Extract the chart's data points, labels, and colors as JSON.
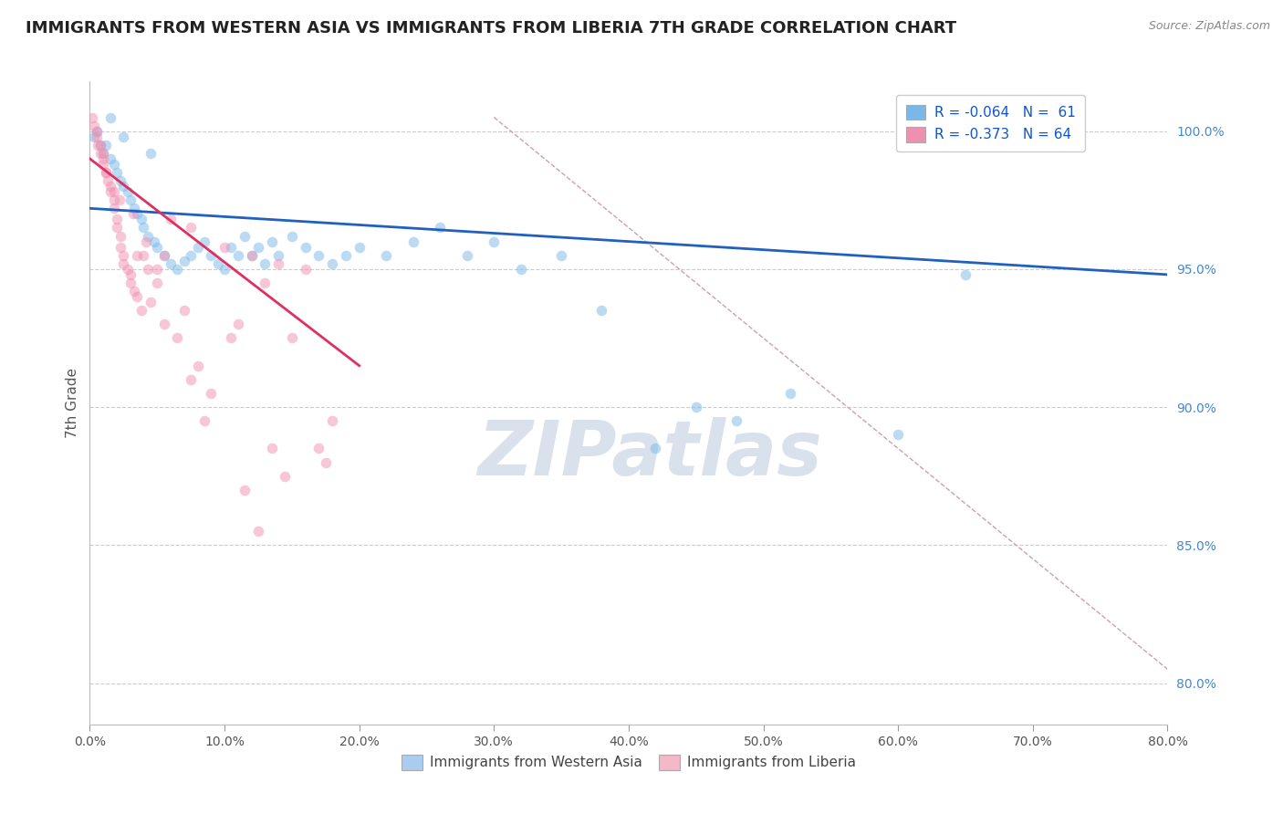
{
  "title": "IMMIGRANTS FROM WESTERN ASIA VS IMMIGRANTS FROM LIBERIA 7TH GRADE CORRELATION CHART",
  "source_text": "Source: ZipAtlas.com",
  "ylabel_left": "7th Grade",
  "x_tick_labels": [
    "0.0%",
    "",
    "",
    "",
    "",
    "",
    "",
    "",
    "",
    "",
    "10.0%",
    "",
    "",
    "",
    "",
    "",
    "",
    "",
    "",
    "",
    "20.0%",
    "",
    "",
    "",
    "",
    "",
    "",
    "",
    "",
    "",
    "30.0%",
    "",
    "",
    "",
    "",
    "",
    "",
    "",
    "",
    "",
    "40.0%",
    "",
    "",
    "",
    "",
    "",
    "",
    "",
    "",
    "",
    "50.0%",
    "",
    "",
    "",
    "",
    "",
    "",
    "",
    "",
    "",
    "60.0%",
    "",
    "",
    "",
    "",
    "",
    "",
    "",
    "",
    "",
    "70.0%",
    "",
    "",
    "",
    "",
    "",
    "",
    "",
    "",
    "",
    "80.0%"
  ],
  "y_right_tick_labels": [
    "80.0%",
    "85.0%",
    "90.0%",
    "95.0%",
    "100.0%"
  ],
  "x_min": 0.0,
  "x_max": 80.0,
  "y_min": 78.5,
  "y_max": 101.8,
  "watermark": "ZIPatlas",
  "watermark_color": "#c0d0e0",
  "blue_scatter_color": "#7ab8e8",
  "pink_scatter_color": "#f090b0",
  "blue_line_color": "#2060c0",
  "pink_line_color": "#e03060",
  "diag_line_color": "#d0a0a8",
  "grid_color": "#cccccc",
  "title_fontsize": 13,
  "scatter_alpha": 0.5,
  "scatter_size": 70,
  "legend_label_blue": "R = -0.064   N =  61",
  "legend_label_pink": "R = -0.373   N = 64",
  "blue_scatter_x": [
    0.3,
    0.5,
    0.8,
    1.0,
    1.2,
    1.5,
    1.8,
    2.0,
    2.3,
    2.5,
    2.8,
    3.0,
    3.3,
    3.5,
    3.8,
    4.0,
    4.3,
    4.8,
    5.0,
    5.5,
    6.0,
    6.5,
    7.0,
    7.5,
    8.0,
    8.5,
    9.0,
    9.5,
    10.0,
    10.5,
    11.0,
    11.5,
    12.0,
    12.5,
    13.0,
    13.5,
    14.0,
    15.0,
    16.0,
    17.0,
    18.0,
    19.0,
    20.0,
    22.0,
    24.0,
    26.0,
    28.0,
    30.0,
    32.0,
    35.0,
    38.0,
    42.0,
    45.0,
    48.0,
    52.0,
    60.0,
    65.0,
    68.0,
    1.5,
    2.5,
    4.5
  ],
  "blue_scatter_y": [
    99.8,
    100.0,
    99.5,
    99.2,
    99.5,
    99.0,
    98.8,
    98.5,
    98.2,
    98.0,
    97.8,
    97.5,
    97.2,
    97.0,
    96.8,
    96.5,
    96.2,
    96.0,
    95.8,
    95.5,
    95.2,
    95.0,
    95.3,
    95.5,
    95.8,
    96.0,
    95.5,
    95.2,
    95.0,
    95.8,
    95.5,
    96.2,
    95.5,
    95.8,
    95.2,
    96.0,
    95.5,
    96.2,
    95.8,
    95.5,
    95.2,
    95.5,
    95.8,
    95.5,
    96.0,
    96.5,
    95.5,
    96.0,
    95.0,
    95.5,
    93.5,
    88.5,
    90.0,
    89.5,
    90.5,
    89.0,
    94.8,
    100.2,
    100.5,
    99.8,
    99.2
  ],
  "pink_scatter_x": [
    0.2,
    0.3,
    0.5,
    0.5,
    0.8,
    0.8,
    1.0,
    1.0,
    1.2,
    1.3,
    1.5,
    1.5,
    1.8,
    1.8,
    2.0,
    2.0,
    2.3,
    2.3,
    2.5,
    2.5,
    2.8,
    3.0,
    3.0,
    3.3,
    3.5,
    3.8,
    4.0,
    4.3,
    4.5,
    5.0,
    5.5,
    6.0,
    6.5,
    7.0,
    7.5,
    8.0,
    9.0,
    10.0,
    11.0,
    12.0,
    13.0,
    14.0,
    15.0,
    16.0,
    17.0,
    18.0,
    1.2,
    2.2,
    3.2,
    4.2,
    5.5,
    7.5,
    10.5,
    13.5,
    0.6,
    1.0,
    1.8,
    3.5,
    5.0,
    8.5,
    11.5,
    14.5,
    17.5,
    12.5
  ],
  "pink_scatter_y": [
    100.5,
    100.2,
    100.0,
    99.8,
    99.5,
    99.2,
    99.0,
    98.8,
    98.5,
    98.2,
    98.0,
    97.8,
    97.5,
    97.2,
    96.8,
    96.5,
    96.2,
    95.8,
    95.5,
    95.2,
    95.0,
    94.8,
    94.5,
    94.2,
    94.0,
    93.5,
    95.5,
    95.0,
    93.8,
    94.5,
    93.0,
    96.8,
    92.5,
    93.5,
    96.5,
    91.5,
    90.5,
    95.8,
    93.0,
    95.5,
    94.5,
    95.2,
    92.5,
    95.0,
    88.5,
    89.5,
    98.5,
    97.5,
    97.0,
    96.0,
    95.5,
    91.0,
    92.5,
    88.5,
    99.5,
    99.2,
    97.8,
    95.5,
    95.0,
    89.5,
    87.0,
    87.5,
    88.0,
    85.5
  ],
  "blue_trendline_x": [
    0.0,
    80.0
  ],
  "blue_trendline_y": [
    97.2,
    94.8
  ],
  "pink_trendline_x": [
    0.0,
    20.0
  ],
  "pink_trendline_y": [
    99.0,
    91.5
  ],
  "diag_line_x": [
    30.0,
    80.0
  ],
  "diag_line_y": [
    100.5,
    80.5
  ],
  "bottom_legend": [
    {
      "label": "Immigrants from Western Asia",
      "color": "#aaccee"
    },
    {
      "label": "Immigrants from Liberia",
      "color": "#f4b8c8"
    }
  ]
}
